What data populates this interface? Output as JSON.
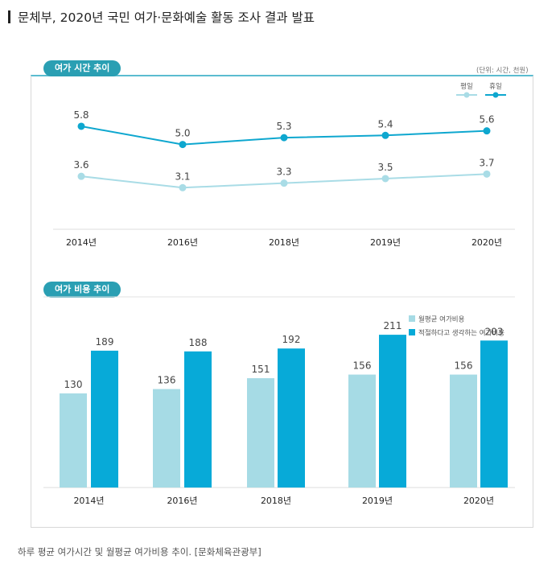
{
  "headline": "문체부, 2020년 국민 여가·문화예술 활동 조사 결과 발표",
  "caption": "하루 평균 여가시간 및 월평균 여가비용 추이. [문화체육관광부]",
  "chart_data": [
    {
      "type": "line",
      "title": "여가 시간 추이",
      "unit_note": "(단위: 시간, 천원)",
      "categories": [
        "2014년",
        "2016년",
        "2018년",
        "2019년",
        "2020년"
      ],
      "legend_position": "top-right",
      "series": [
        {
          "name": "평일",
          "values": [
            3.6,
            3.1,
            3.3,
            3.5,
            3.7
          ],
          "color": "#a9dce6"
        },
        {
          "name": "휴일",
          "values": [
            5.8,
            5.0,
            5.3,
            5.4,
            5.6
          ],
          "color": "#0ea7cf"
        }
      ]
    },
    {
      "type": "bar",
      "title": "여가 비용 추이",
      "categories": [
        "2014년",
        "2016년",
        "2018년",
        "2019년",
        "2020년"
      ],
      "legend_position": "top-right",
      "series": [
        {
          "name": "월평균 여가비용",
          "values": [
            130,
            136,
            151,
            156,
            156
          ],
          "color": "#a6dbe5"
        },
        {
          "name": "적절하다고 생각하는 여가비용",
          "values": [
            189,
            188,
            192,
            211,
            203
          ],
          "color": "#07aad8"
        }
      ]
    }
  ]
}
